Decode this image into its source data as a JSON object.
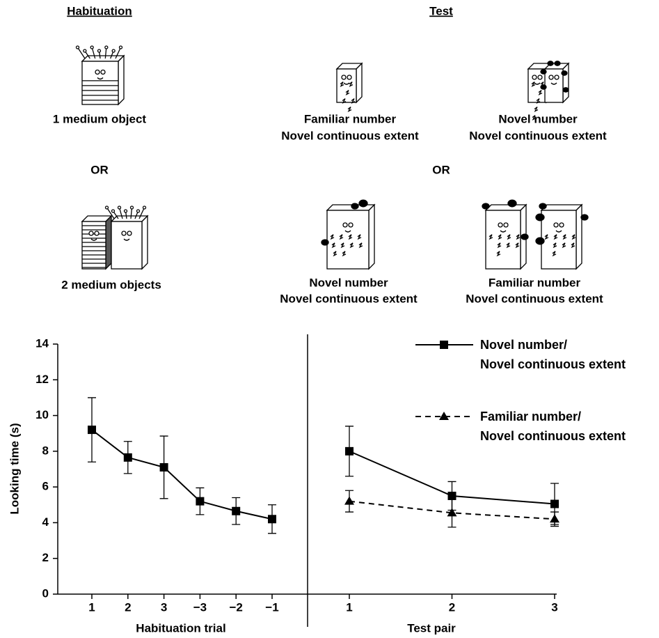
{
  "figure": {
    "habituation": {
      "header": "Habituation",
      "option1": "1 medium object",
      "or": "OR",
      "option2": "2 medium objects"
    },
    "test": {
      "header": "Test",
      "or": "OR",
      "top": [
        [
          "Familiar number",
          "Novel continuous extent"
        ],
        [
          "Novel number",
          "Novel continuous extent"
        ]
      ],
      "bottom": [
        [
          "Novel number",
          "Novel continuous extent"
        ],
        [
          "Familiar number",
          "Novel continuous extent"
        ]
      ]
    }
  },
  "chart_data": {
    "type": "line",
    "ylabel": "Looking time (s)",
    "ylim": [
      0,
      14
    ],
    "yticks": [
      0,
      2,
      4,
      6,
      8,
      10,
      12,
      14
    ],
    "panels": [
      {
        "xlabel": "Habituation trial",
        "categories": [
          "1",
          "2",
          "3",
          "−3",
          "−2",
          "−1"
        ],
        "series": [
          {
            "color": "#000",
            "marker": "square",
            "dashed": false,
            "values": [
              9.2,
              7.65,
              7.1,
              5.2,
              4.65,
              4.2
            ],
            "errors": [
              1.8,
              0.9,
              1.75,
              0.75,
              0.75,
              0.8
            ]
          }
        ]
      },
      {
        "xlabel": "Test pair",
        "categories": [
          "1",
          "2",
          "3"
        ],
        "series": [
          {
            "name": "Novel number/\nNovel continuous extent",
            "color": "#000",
            "marker": "square",
            "dashed": false,
            "values": [
              8.0,
              5.5,
              5.05
            ],
            "errors": [
              1.4,
              0.8,
              1.15
            ]
          },
          {
            "name": "Familiar number/\nNovel continuous extent",
            "color": "#000",
            "marker": "triangle",
            "dashed": true,
            "values": [
              5.2,
              4.55,
              4.2
            ],
            "errors": [
              0.6,
              0.8,
              0.4
            ]
          }
        ]
      }
    ]
  }
}
